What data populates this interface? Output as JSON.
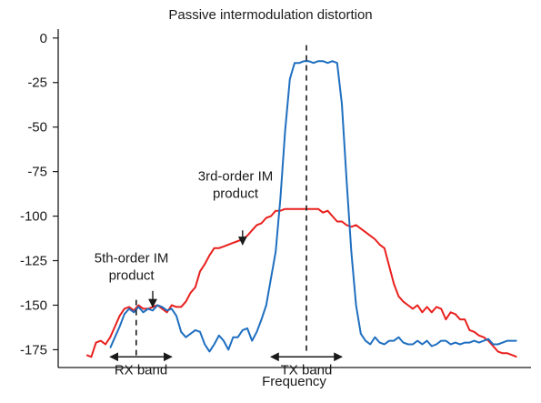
{
  "chart_data": {
    "type": "line",
    "title": "Passive intermodulation distortion",
    "xlabel": "Frequency",
    "ylabel": "",
    "ylim": [
      -185,
      5
    ],
    "xlim": [
      0,
      100
    ],
    "yticks": [
      0,
      -25,
      -50,
      -75,
      -100,
      -125,
      -150,
      -175
    ],
    "ytick_labels": [
      "0",
      "-25",
      "-50",
      "-75",
      "-100",
      "-125",
      "-150",
      "-175"
    ],
    "grid": false,
    "legend": "none",
    "colors": {
      "red": "#e8201d",
      "blue": "#1f6fc0",
      "axis": "#1a1a1a"
    },
    "series": [
      {
        "color": "#e8201d",
        "points": [
          [
            6,
            -178
          ],
          [
            7,
            -179
          ],
          [
            8,
            -171
          ],
          [
            9,
            -170
          ],
          [
            10,
            -172
          ],
          [
            11,
            -168
          ],
          [
            12,
            -162
          ],
          [
            13,
            -156
          ],
          [
            14,
            -152
          ],
          [
            15,
            -151
          ],
          [
            16,
            -153
          ],
          [
            17,
            -150
          ],
          [
            18,
            -152
          ],
          [
            19,
            -152
          ],
          [
            20,
            -151
          ],
          [
            21,
            -150
          ],
          [
            22,
            -152
          ],
          [
            23,
            -154
          ],
          [
            24,
            -150
          ],
          [
            25,
            -151
          ],
          [
            26,
            -151
          ],
          [
            27,
            -148
          ],
          [
            28,
            -143
          ],
          [
            29,
            -140
          ],
          [
            30,
            -131
          ],
          [
            31,
            -127
          ],
          [
            32,
            -122
          ],
          [
            33,
            -118
          ],
          [
            34,
            -118
          ],
          [
            35,
            -117
          ],
          [
            36,
            -116
          ],
          [
            37,
            -115
          ],
          [
            38,
            -114
          ],
          [
            39,
            -113
          ],
          [
            40,
            -111
          ],
          [
            41,
            -108
          ],
          [
            42,
            -105
          ],
          [
            43,
            -104
          ],
          [
            44,
            -101
          ],
          [
            45,
            -100
          ],
          [
            46,
            -97
          ],
          [
            47,
            -97
          ],
          [
            48,
            -96
          ],
          [
            49,
            -96
          ],
          [
            55,
            -96
          ],
          [
            56,
            -98
          ],
          [
            57,
            -97
          ],
          [
            58,
            -100
          ],
          [
            59,
            -103
          ],
          [
            60,
            -103
          ],
          [
            61,
            -105
          ],
          [
            62,
            -106
          ],
          [
            63,
            -105
          ],
          [
            64,
            -107
          ],
          [
            65,
            -109
          ],
          [
            66,
            -111
          ],
          [
            67,
            -113
          ],
          [
            68,
            -116
          ],
          [
            69,
            -118
          ],
          [
            70,
            -128
          ],
          [
            71,
            -138
          ],
          [
            72,
            -145
          ],
          [
            73,
            -148
          ],
          [
            74,
            -150
          ],
          [
            75,
            -152
          ],
          [
            76,
            -150
          ],
          [
            77,
            -154
          ],
          [
            78,
            -151
          ],
          [
            79,
            -154
          ],
          [
            80,
            -151
          ],
          [
            81,
            -152
          ],
          [
            82,
            -158
          ],
          [
            83,
            -154
          ],
          [
            84,
            -155
          ],
          [
            85,
            -158
          ],
          [
            86,
            -158
          ],
          [
            87,
            -164
          ],
          [
            88,
            -165
          ],
          [
            89,
            -167
          ],
          [
            90,
            -168
          ],
          [
            91,
            -170
          ],
          [
            92,
            -173
          ],
          [
            93,
            -176
          ],
          [
            94,
            -177
          ],
          [
            95,
            -177
          ],
          [
            96,
            -178
          ],
          [
            97,
            -179
          ]
        ]
      },
      {
        "color": "#1f6fc0",
        "points": [
          [
            11,
            -174
          ],
          [
            12,
            -168
          ],
          [
            13,
            -162
          ],
          [
            14,
            -155
          ],
          [
            15,
            -152
          ],
          [
            16,
            -154
          ],
          [
            17,
            -151
          ],
          [
            18,
            -154
          ],
          [
            19,
            -152
          ],
          [
            20,
            -153
          ],
          [
            21,
            -150
          ],
          [
            22,
            -151
          ],
          [
            23,
            -153
          ],
          [
            24,
            -152
          ],
          [
            25,
            -156
          ],
          [
            26,
            -165
          ],
          [
            27,
            -168
          ],
          [
            28,
            -166
          ],
          [
            29,
            -164
          ],
          [
            30,
            -165
          ],
          [
            31,
            -172
          ],
          [
            32,
            -176
          ],
          [
            33,
            -172
          ],
          [
            34,
            -167
          ],
          [
            35,
            -170
          ],
          [
            36,
            -175
          ],
          [
            37,
            -168
          ],
          [
            38,
            -168
          ],
          [
            39,
            -164
          ],
          [
            40,
            -163
          ],
          [
            41,
            -170
          ],
          [
            42,
            -165
          ],
          [
            43,
            -158
          ],
          [
            44,
            -150
          ],
          [
            45,
            -135
          ],
          [
            46,
            -120
          ],
          [
            47,
            -90
          ],
          [
            48,
            -52
          ],
          [
            49,
            -23
          ],
          [
            50,
            -14
          ],
          [
            51,
            -14
          ],
          [
            52,
            -13
          ],
          [
            53,
            -13
          ],
          [
            54,
            -14
          ],
          [
            55,
            -13
          ],
          [
            56,
            -13
          ],
          [
            57,
            -14
          ],
          [
            58,
            -13
          ],
          [
            59,
            -14
          ],
          [
            60,
            -37
          ],
          [
            61,
            -80
          ],
          [
            62,
            -120
          ],
          [
            63,
            -150
          ],
          [
            64,
            -166
          ],
          [
            65,
            -170
          ],
          [
            66,
            -172
          ],
          [
            67,
            -168
          ],
          [
            68,
            -171
          ],
          [
            69,
            -172
          ],
          [
            70,
            -170
          ],
          [
            71,
            -170
          ],
          [
            72,
            -168
          ],
          [
            73,
            -171
          ],
          [
            74,
            -172
          ],
          [
            75,
            -172
          ],
          [
            76,
            -170
          ],
          [
            77,
            -172
          ],
          [
            78,
            -170
          ],
          [
            79,
            -173
          ],
          [
            80,
            -172
          ],
          [
            81,
            -170
          ],
          [
            82,
            -170
          ],
          [
            83,
            -172
          ],
          [
            84,
            -171
          ],
          [
            85,
            -172
          ],
          [
            86,
            -171
          ],
          [
            87,
            -171
          ],
          [
            88,
            -170
          ],
          [
            89,
            -171
          ],
          [
            90,
            -170
          ],
          [
            91,
            -169
          ],
          [
            92,
            -172
          ],
          [
            93,
            -172
          ],
          [
            94,
            -171
          ],
          [
            95,
            -170
          ],
          [
            96,
            -170
          ],
          [
            97,
            -170
          ]
        ]
      }
    ],
    "dashed_lines": [
      {
        "x": 52.5,
        "y_top": -4,
        "y_bottom": -176
      },
      {
        "x": 16.5,
        "y_top": -147,
        "y_bottom": -179
      }
    ],
    "annotations": [
      {
        "id": "third-order",
        "lines": [
          "3rd-order IM",
          "product"
        ],
        "text_x": 37.5,
        "text_y": -80,
        "arrow_x": 39,
        "arrow_top": -108,
        "arrow_bottom": -116
      },
      {
        "id": "fifth-order",
        "lines": [
          "5th-order IM",
          "product"
        ],
        "text_x": 15.5,
        "text_y": -126,
        "arrow_x": 20,
        "arrow_top": -142,
        "arrow_bottom": -151
      }
    ],
    "bands": [
      {
        "label": "RX band",
        "x1": 11,
        "x2": 24,
        "y": -179
      },
      {
        "label": "TX band",
        "x1": 45,
        "x2": 60,
        "y": -179
      }
    ]
  }
}
